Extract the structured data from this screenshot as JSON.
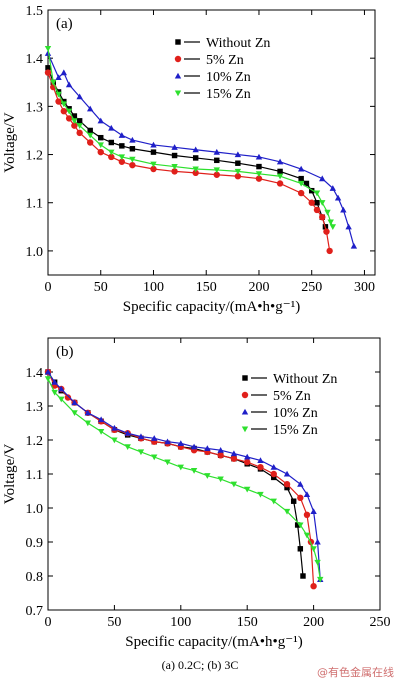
{
  "caption": "(a) 0.2C; (b) 3C",
  "watermark": "@有色金属在线",
  "legend_entries": [
    "Without Zn",
    "5% Zn",
    "10% Zn",
    "15% Zn"
  ],
  "chart_data": [
    {
      "type": "scatter",
      "panel_label": "(a)",
      "xlabel": "Specific capacity/(mA•h•g⁻¹)",
      "ylabel": "Voltage/V",
      "xlim": [
        0,
        310
      ],
      "ylim": [
        0.95,
        1.5
      ],
      "xticks": [
        0,
        50,
        100,
        150,
        200,
        250,
        300
      ],
      "yticks": [
        1.0,
        1.1,
        1.2,
        1.3,
        1.4,
        1.5
      ],
      "grid": false,
      "legend_position": "top-right",
      "series": [
        {
          "name": "Without Zn",
          "color": "#000000",
          "marker": "square",
          "x": [
            0,
            5,
            10,
            15,
            20,
            25,
            30,
            40,
            50,
            60,
            70,
            80,
            100,
            120,
            140,
            160,
            180,
            200,
            220,
            240,
            245,
            250,
            255,
            260,
            263
          ],
          "y": [
            1.38,
            1.35,
            1.33,
            1.31,
            1.295,
            1.28,
            1.27,
            1.25,
            1.235,
            1.225,
            1.218,
            1.212,
            1.205,
            1.198,
            1.193,
            1.188,
            1.182,
            1.175,
            1.165,
            1.15,
            1.14,
            1.125,
            1.1,
            1.07,
            1.05
          ]
        },
        {
          "name": "5% Zn",
          "color": "#e0201b",
          "marker": "circle",
          "x": [
            0,
            5,
            10,
            15,
            20,
            25,
            30,
            40,
            50,
            60,
            70,
            80,
            100,
            120,
            140,
            160,
            180,
            200,
            220,
            240,
            250,
            255,
            260,
            264,
            267
          ],
          "y": [
            1.37,
            1.34,
            1.31,
            1.29,
            1.275,
            1.26,
            1.245,
            1.225,
            1.205,
            1.195,
            1.185,
            1.178,
            1.17,
            1.165,
            1.162,
            1.158,
            1.155,
            1.15,
            1.14,
            1.12,
            1.1,
            1.085,
            1.07,
            1.04,
            1.0
          ]
        },
        {
          "name": "10% Zn",
          "color": "#1f1fc8",
          "marker": "triangle-up",
          "x": [
            0,
            10,
            15,
            20,
            30,
            40,
            50,
            60,
            70,
            80,
            100,
            120,
            140,
            160,
            180,
            200,
            220,
            240,
            260,
            270,
            275,
            280,
            285,
            290
          ],
          "y": [
            1.41,
            1.36,
            1.37,
            1.345,
            1.32,
            1.295,
            1.27,
            1.255,
            1.24,
            1.23,
            1.22,
            1.215,
            1.21,
            1.205,
            1.2,
            1.195,
            1.185,
            1.17,
            1.15,
            1.13,
            1.11,
            1.085,
            1.05,
            1.01
          ]
        },
        {
          "name": "15% Zn",
          "color": "#2ee02e",
          "marker": "triangle-down",
          "x": [
            0,
            5,
            10,
            15,
            20,
            25,
            30,
            40,
            50,
            60,
            70,
            80,
            100,
            120,
            140,
            160,
            180,
            200,
            220,
            240,
            255,
            260,
            265,
            268,
            270
          ],
          "y": [
            1.42,
            1.35,
            1.325,
            1.305,
            1.29,
            1.27,
            1.26,
            1.24,
            1.22,
            1.205,
            1.195,
            1.19,
            1.18,
            1.175,
            1.17,
            1.168,
            1.165,
            1.16,
            1.155,
            1.14,
            1.12,
            1.1,
            1.08,
            1.06,
            1.05
          ]
        }
      ]
    },
    {
      "type": "scatter",
      "panel_label": "(b)",
      "xlabel": "Specific capacity/(mA•h•g⁻¹)",
      "ylabel": "Voltage/V",
      "xlim": [
        0,
        250
      ],
      "ylim": [
        0.7,
        1.5
      ],
      "xticks": [
        0,
        50,
        100,
        150,
        200,
        250
      ],
      "yticks": [
        0.7,
        0.8,
        0.9,
        1.0,
        1.1,
        1.2,
        1.3,
        1.4
      ],
      "grid": false,
      "legend_position": "top-right",
      "series": [
        {
          "name": "Without Zn",
          "color": "#000000",
          "marker": "square",
          "x": [
            0,
            5,
            10,
            20,
            30,
            40,
            50,
            60,
            70,
            80,
            90,
            100,
            110,
            120,
            130,
            140,
            150,
            160,
            170,
            180,
            185,
            188,
            190,
            192
          ],
          "y": [
            1.4,
            1.37,
            1.345,
            1.31,
            1.28,
            1.255,
            1.23,
            1.215,
            1.205,
            1.195,
            1.19,
            1.18,
            1.175,
            1.165,
            1.155,
            1.145,
            1.13,
            1.115,
            1.09,
            1.06,
            1.02,
            0.95,
            0.88,
            0.8
          ]
        },
        {
          "name": "5% Zn",
          "color": "#e0201b",
          "marker": "circle",
          "x": [
            0,
            5,
            10,
            15,
            20,
            30,
            40,
            50,
            60,
            70,
            80,
            90,
            100,
            110,
            120,
            130,
            140,
            150,
            160,
            170,
            180,
            190,
            195,
            198,
            200
          ],
          "y": [
            1.4,
            1.36,
            1.35,
            1.325,
            1.31,
            1.28,
            1.255,
            1.23,
            1.22,
            1.205,
            1.195,
            1.19,
            1.18,
            1.17,
            1.165,
            1.155,
            1.145,
            1.135,
            1.12,
            1.1,
            1.07,
            1.03,
            0.98,
            0.9,
            0.77
          ]
        },
        {
          "name": "10% Zn",
          "color": "#1f1fc8",
          "marker": "triangle-up",
          "x": [
            0,
            5,
            10,
            20,
            30,
            40,
            50,
            60,
            70,
            80,
            90,
            100,
            110,
            120,
            130,
            140,
            150,
            160,
            170,
            180,
            190,
            195,
            200,
            203,
            205
          ],
          "y": [
            1.4,
            1.37,
            1.35,
            1.31,
            1.28,
            1.26,
            1.235,
            1.22,
            1.21,
            1.205,
            1.195,
            1.19,
            1.18,
            1.175,
            1.17,
            1.16,
            1.15,
            1.14,
            1.12,
            1.1,
            1.07,
            1.04,
            0.99,
            0.9,
            0.79
          ]
        },
        {
          "name": "15% Zn",
          "color": "#2ee02e",
          "marker": "triangle-down",
          "x": [
            0,
            5,
            10,
            20,
            30,
            40,
            50,
            60,
            70,
            80,
            90,
            100,
            110,
            120,
            130,
            140,
            150,
            160,
            170,
            180,
            190,
            195,
            200,
            203,
            205
          ],
          "y": [
            1.38,
            1.34,
            1.32,
            1.28,
            1.25,
            1.225,
            1.2,
            1.18,
            1.165,
            1.15,
            1.135,
            1.12,
            1.11,
            1.095,
            1.085,
            1.07,
            1.055,
            1.04,
            1.02,
            0.99,
            0.95,
            0.92,
            0.88,
            0.84,
            0.79
          ]
        }
      ]
    }
  ]
}
